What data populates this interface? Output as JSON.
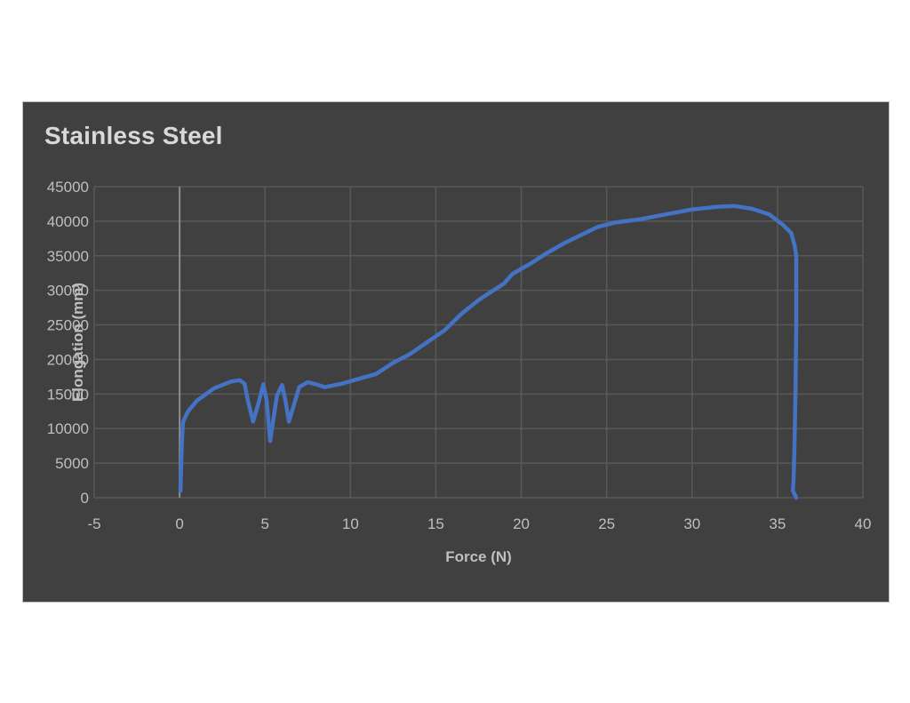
{
  "chart_data": {
    "type": "line",
    "title": "Stainless Steel",
    "xlabel": "Force (N)",
    "ylabel": "Elongation (mm)",
    "xlim": [
      -5,
      40
    ],
    "ylim": [
      0,
      45000
    ],
    "xticks": [
      -5,
      0,
      5,
      10,
      15,
      20,
      25,
      30,
      35,
      40
    ],
    "yticks": [
      0,
      5000,
      10000,
      15000,
      20000,
      25000,
      30000,
      35000,
      40000,
      45000
    ],
    "grid": true,
    "legend": "none",
    "series": [
      {
        "color": "#4472c4",
        "points": [
          [
            0.05,
            1000
          ],
          [
            0.1,
            5000
          ],
          [
            0.15,
            9000
          ],
          [
            0.2,
            11000
          ],
          [
            0.5,
            12500
          ],
          [
            1.0,
            14000
          ],
          [
            2.0,
            15800
          ],
          [
            3.0,
            16800
          ],
          [
            3.5,
            17000
          ],
          [
            3.8,
            16500
          ],
          [
            4.0,
            14000
          ],
          [
            4.3,
            11000
          ],
          [
            4.6,
            13500
          ],
          [
            4.9,
            16400
          ],
          [
            5.1,
            14000
          ],
          [
            5.3,
            8200
          ],
          [
            5.5,
            11500
          ],
          [
            5.7,
            14800
          ],
          [
            6.0,
            16300
          ],
          [
            6.2,
            14000
          ],
          [
            6.4,
            11000
          ],
          [
            6.7,
            13500
          ],
          [
            7.0,
            16000
          ],
          [
            7.5,
            16700
          ],
          [
            8.0,
            16400
          ],
          [
            8.5,
            16000
          ],
          [
            9.5,
            16500
          ],
          [
            10.5,
            17200
          ],
          [
            11.5,
            17900
          ],
          [
            12.5,
            19500
          ],
          [
            13.5,
            20800
          ],
          [
            14.5,
            22500
          ],
          [
            15.5,
            24200
          ],
          [
            16.5,
            26600
          ],
          [
            17.5,
            28600
          ],
          [
            18.5,
            30200
          ],
          [
            19.0,
            31000
          ],
          [
            19.5,
            32400
          ],
          [
            20.5,
            33800
          ],
          [
            21.5,
            35400
          ],
          [
            22.5,
            36800
          ],
          [
            23.5,
            38000
          ],
          [
            24.5,
            39200
          ],
          [
            25.5,
            39800
          ],
          [
            27.0,
            40300
          ],
          [
            28.5,
            41000
          ],
          [
            30.0,
            41700
          ],
          [
            31.5,
            42100
          ],
          [
            32.5,
            42200
          ],
          [
            33.5,
            41800
          ],
          [
            34.5,
            41000
          ],
          [
            35.3,
            39500
          ],
          [
            35.8,
            38300
          ],
          [
            36.0,
            36500
          ],
          [
            36.1,
            35000
          ],
          [
            36.1,
            25000
          ],
          [
            36.05,
            15000
          ],
          [
            36.0,
            8000
          ],
          [
            35.95,
            3000
          ],
          [
            35.9,
            1000
          ],
          [
            36.1,
            0
          ]
        ]
      }
    ]
  }
}
